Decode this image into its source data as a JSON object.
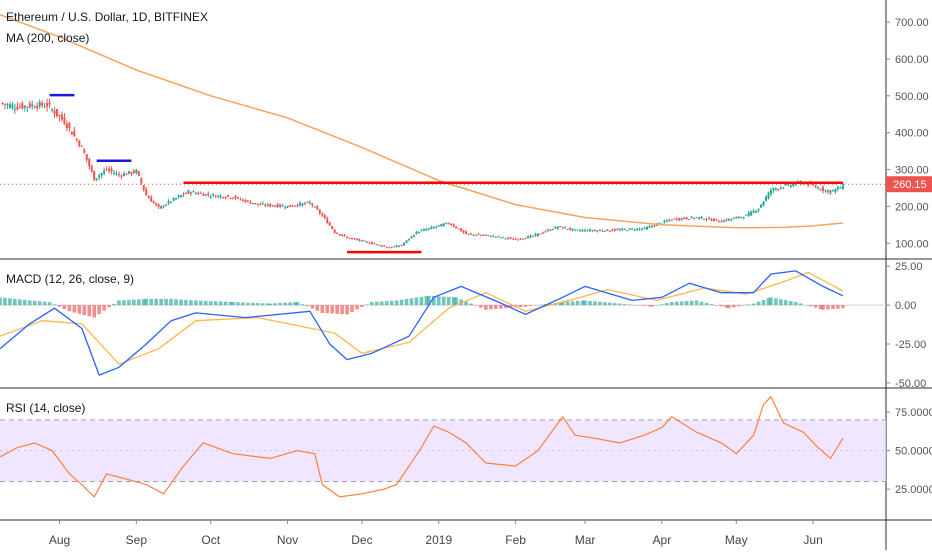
{
  "header": {
    "symbol_title": "Ethereum / U.S. Dollar, 1D, BITFINEX",
    "ma_label": "MA (200, close)",
    "macd_label": "MACD (12, 26, close, 9)",
    "rsi_label": "RSI (14, close)",
    "price_tag": "260.15"
  },
  "colors": {
    "candle_up": "#26a69a",
    "candle_down": "#ef5350",
    "ma_line": "#f7a35c",
    "macd_line": "#2962ff",
    "signal_line": "#ffb74d",
    "rsi_line": "#ff7f3f",
    "rsi_band": "#e9dcff",
    "resistance": "#ff0000",
    "marker_blue": "#1a1ad8",
    "axis_text": "#555555",
    "divider": "#2a2e39"
  },
  "chart_data": [
    {
      "type": "candlestick",
      "title": "Ethereum / U.S. Dollar, 1D, BITFINEX",
      "yticks": [
        "700.00",
        "600.00",
        "500.00",
        "400.00",
        "300.00",
        "200.00",
        "100.00"
      ],
      "ylim": [
        60,
        760
      ],
      "x_range": [
        "2018-07-08",
        "2019-06-30"
      ],
      "xticks": [
        {
          "date": "2018-08-01",
          "label": "Aug"
        },
        {
          "date": "2018-09-01",
          "label": "Sep"
        },
        {
          "date": "2018-10-01",
          "label": "Oct"
        },
        {
          "date": "2018-11-01",
          "label": "Nov"
        },
        {
          "date": "2018-12-01",
          "label": "Dec"
        },
        {
          "date": "2019-01-01",
          "label": "2019"
        },
        {
          "date": "2019-02-01",
          "label": "Feb"
        },
        {
          "date": "2019-03-01",
          "label": "Mar"
        },
        {
          "date": "2019-04-01",
          "label": "Apr"
        },
        {
          "date": "2019-05-01",
          "label": "May"
        },
        {
          "date": "2019-06-01",
          "label": "Jun"
        }
      ],
      "last_price": 260.15,
      "close_series": [
        [
          "2018-07-08",
          480
        ],
        [
          "2018-07-15",
          470
        ],
        [
          "2018-07-22",
          475
        ],
        [
          "2018-07-27",
          475
        ],
        [
          "2018-08-03",
          430
        ],
        [
          "2018-08-10",
          360
        ],
        [
          "2018-08-15",
          275
        ],
        [
          "2018-08-20",
          300
        ],
        [
          "2018-08-25",
          285
        ],
        [
          "2018-09-01",
          295
        ],
        [
          "2018-09-05",
          230
        ],
        [
          "2018-09-10",
          195
        ],
        [
          "2018-09-15",
          215
        ],
        [
          "2018-09-22",
          240
        ],
        [
          "2018-10-01",
          230
        ],
        [
          "2018-10-10",
          225
        ],
        [
          "2018-10-20",
          205
        ],
        [
          "2018-11-01",
          200
        ],
        [
          "2018-11-10",
          210
        ],
        [
          "2018-11-15",
          175
        ],
        [
          "2018-11-20",
          130
        ],
        [
          "2018-11-25",
          115
        ],
        [
          "2018-12-05",
          100
        ],
        [
          "2018-12-12",
          88
        ],
        [
          "2018-12-17",
          95
        ],
        [
          "2018-12-23",
          130
        ],
        [
          "2018-12-28",
          140
        ],
        [
          "2019-01-05",
          155
        ],
        [
          "2019-01-12",
          125
        ],
        [
          "2019-01-22",
          120
        ],
        [
          "2019-02-01",
          110
        ],
        [
          "2019-02-08",
          120
        ],
        [
          "2019-02-18",
          145
        ],
        [
          "2019-02-25",
          135
        ],
        [
          "2019-03-10",
          135
        ],
        [
          "2019-03-25",
          140
        ],
        [
          "2019-04-05",
          165
        ],
        [
          "2019-04-15",
          170
        ],
        [
          "2019-04-25",
          160
        ],
        [
          "2019-05-05",
          175
        ],
        [
          "2019-05-10",
          195
        ],
        [
          "2019-05-15",
          245
        ],
        [
          "2019-05-20",
          255
        ],
        [
          "2019-05-28",
          265
        ],
        [
          "2019-06-03",
          250
        ],
        [
          "2019-06-08",
          240
        ],
        [
          "2019-06-13",
          255
        ]
      ],
      "ma_200": [
        [
          "2018-07-08",
          720
        ],
        [
          "2018-08-01",
          660
        ],
        [
          "2018-09-01",
          570
        ],
        [
          "2018-10-01",
          500
        ],
        [
          "2018-11-01",
          440
        ],
        [
          "2018-12-01",
          360
        ],
        [
          "2019-01-01",
          270
        ],
        [
          "2019-02-01",
          205
        ],
        [
          "2019-03-01",
          170
        ],
        [
          "2019-04-01",
          150
        ],
        [
          "2019-05-01",
          142
        ],
        [
          "2019-05-20",
          143
        ],
        [
          "2019-06-01",
          147
        ],
        [
          "2019-06-13",
          155
        ]
      ],
      "annotations": [
        {
          "kind": "resistance",
          "from": "2018-09-20",
          "to": "2019-06-13",
          "value": 264
        },
        {
          "kind": "support",
          "from": "2018-11-25",
          "to": "2018-12-25",
          "value": 76
        },
        {
          "kind": "marker",
          "from": "2018-07-28",
          "to": "2018-08-07",
          "value": 502
        },
        {
          "kind": "marker",
          "from": "2018-08-16",
          "to": "2018-08-30",
          "value": 324
        }
      ]
    },
    {
      "type": "line",
      "title": "MACD (12, 26, close, 9)",
      "yticks": [
        "25.00",
        "0.00",
        "-25.00",
        "-50.00"
      ],
      "ylim": [
        -52,
        29
      ],
      "macd": [
        [
          "2018-07-08",
          -28
        ],
        [
          "2018-07-20",
          -12
        ],
        [
          "2018-07-30",
          -2
        ],
        [
          "2018-08-10",
          -15
        ],
        [
          "2018-08-17",
          -45
        ],
        [
          "2018-08-25",
          -40
        ],
        [
          "2018-09-05",
          -25
        ],
        [
          "2018-09-15",
          -10
        ],
        [
          "2018-09-25",
          -5
        ],
        [
          "2018-10-15",
          -8
        ],
        [
          "2018-11-10",
          -4
        ],
        [
          "2018-11-18",
          -25
        ],
        [
          "2018-11-25",
          -35
        ],
        [
          "2018-12-05",
          -31
        ],
        [
          "2018-12-20",
          -20
        ],
        [
          "2018-12-30",
          5
        ],
        [
          "2019-01-10",
          12
        ],
        [
          "2019-01-25",
          2
        ],
        [
          "2019-02-05",
          -6
        ],
        [
          "2019-02-20",
          5
        ],
        [
          "2019-03-01",
          12
        ],
        [
          "2019-03-20",
          3
        ],
        [
          "2019-04-01",
          5
        ],
        [
          "2019-04-12",
          14
        ],
        [
          "2019-04-25",
          8
        ],
        [
          "2019-05-08",
          8
        ],
        [
          "2019-05-15",
          20
        ],
        [
          "2019-05-25",
          22
        ],
        [
          "2019-06-05",
          12
        ],
        [
          "2019-06-13",
          6
        ]
      ],
      "signal": [
        [
          "2018-07-08",
          -20
        ],
        [
          "2018-07-25",
          -10
        ],
        [
          "2018-08-10",
          -12
        ],
        [
          "2018-08-25",
          -38
        ],
        [
          "2018-09-10",
          -28
        ],
        [
          "2018-09-25",
          -10
        ],
        [
          "2018-10-20",
          -8
        ],
        [
          "2018-11-20",
          -18
        ],
        [
          "2018-12-01",
          -31
        ],
        [
          "2018-12-20",
          -24
        ],
        [
          "2019-01-05",
          -2
        ],
        [
          "2019-01-20",
          8
        ],
        [
          "2019-02-05",
          -4
        ],
        [
          "2019-02-25",
          4
        ],
        [
          "2019-03-10",
          10
        ],
        [
          "2019-03-30",
          3
        ],
        [
          "2019-04-18",
          11
        ],
        [
          "2019-05-05",
          7
        ],
        [
          "2019-05-20",
          15
        ],
        [
          "2019-05-30",
          21
        ],
        [
          "2019-06-13",
          9
        ]
      ],
      "histogram": [
        [
          "2018-07-08",
          5
        ],
        [
          "2018-07-20",
          3
        ],
        [
          "2018-07-28",
          2
        ],
        [
          "2018-08-05",
          -4
        ],
        [
          "2018-08-15",
          -8
        ],
        [
          "2018-08-25",
          3
        ],
        [
          "2018-09-05",
          4
        ],
        [
          "2018-09-15",
          4
        ],
        [
          "2018-09-25",
          3
        ],
        [
          "2018-10-10",
          2
        ],
        [
          "2018-10-25",
          1
        ],
        [
          "2018-11-05",
          2
        ],
        [
          "2018-11-15",
          -5
        ],
        [
          "2018-11-25",
          -6
        ],
        [
          "2018-12-05",
          2
        ],
        [
          "2018-12-15",
          3
        ],
        [
          "2018-12-28",
          6
        ],
        [
          "2019-01-08",
          5
        ],
        [
          "2019-01-20",
          -3
        ],
        [
          "2019-02-05",
          -1
        ],
        [
          "2019-02-20",
          2
        ],
        [
          "2019-03-01",
          3
        ],
        [
          "2019-03-15",
          1
        ],
        [
          "2019-03-28",
          -1
        ],
        [
          "2019-04-05",
          2
        ],
        [
          "2019-04-15",
          3
        ],
        [
          "2019-04-28",
          -2
        ],
        [
          "2019-05-08",
          1
        ],
        [
          "2019-05-15",
          5
        ],
        [
          "2019-05-25",
          2
        ],
        [
          "2019-06-05",
          -3
        ],
        [
          "2019-06-13",
          -2
        ]
      ]
    },
    {
      "type": "line",
      "title": "RSI (14, close)",
      "yticks": [
        "75.0000",
        "50.0000",
        "25.0000"
      ],
      "ylim": [
        5,
        90
      ],
      "band": [
        30,
        70
      ],
      "rsi": [
        [
          "2018-07-08",
          46
        ],
        [
          "2018-07-15",
          52
        ],
        [
          "2018-07-22",
          55
        ],
        [
          "2018-07-29",
          50
        ],
        [
          "2018-08-05",
          35
        ],
        [
          "2018-08-10",
          28
        ],
        [
          "2018-08-15",
          20
        ],
        [
          "2018-08-20",
          35
        ],
        [
          "2018-08-27",
          32
        ],
        [
          "2018-09-05",
          28
        ],
        [
          "2018-09-12",
          22
        ],
        [
          "2018-09-20",
          40
        ],
        [
          "2018-09-28",
          55
        ],
        [
          "2018-10-10",
          48
        ],
        [
          "2018-10-25",
          45
        ],
        [
          "2018-11-05",
          50
        ],
        [
          "2018-11-12",
          48
        ],
        [
          "2018-11-15",
          28
        ],
        [
          "2018-11-22",
          20
        ],
        [
          "2018-12-01",
          22
        ],
        [
          "2018-12-10",
          25
        ],
        [
          "2018-12-15",
          28
        ],
        [
          "2018-12-25",
          52
        ],
        [
          "2018-12-30",
          66
        ],
        [
          "2019-01-05",
          62
        ],
        [
          "2019-01-12",
          55
        ],
        [
          "2019-01-20",
          42
        ],
        [
          "2019-02-01",
          40
        ],
        [
          "2019-02-10",
          50
        ],
        [
          "2019-02-20",
          72
        ],
        [
          "2019-02-25",
          60
        ],
        [
          "2019-03-05",
          58
        ],
        [
          "2019-03-15",
          55
        ],
        [
          "2019-03-25",
          60
        ],
        [
          "2019-04-01",
          65
        ],
        [
          "2019-04-05",
          72
        ],
        [
          "2019-04-15",
          62
        ],
        [
          "2019-04-25",
          55
        ],
        [
          "2019-05-01",
          48
        ],
        [
          "2019-05-08",
          60
        ],
        [
          "2019-05-12",
          80
        ],
        [
          "2019-05-15",
          85
        ],
        [
          "2019-05-20",
          68
        ],
        [
          "2019-05-28",
          62
        ],
        [
          "2019-06-03",
          52
        ],
        [
          "2019-06-08",
          45
        ],
        [
          "2019-06-13",
          58
        ]
      ]
    }
  ],
  "x_axis_labels": [
    "Aug",
    "Sep",
    "Oct",
    "Nov",
    "Dec",
    "2019",
    "Feb",
    "Mar",
    "Apr",
    "May",
    "Jun"
  ]
}
